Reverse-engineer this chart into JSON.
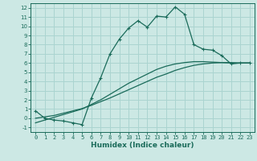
{
  "xlabel": "Humidex (Indice chaleur)",
  "bg_color": "#cce8e4",
  "grid_color": "#aad4d0",
  "line_color": "#1a6b5a",
  "xlim": [
    -0.5,
    23.5
  ],
  "ylim": [
    -1.5,
    12.5
  ],
  "xticks": [
    0,
    1,
    2,
    3,
    4,
    5,
    6,
    7,
    8,
    9,
    10,
    11,
    12,
    13,
    14,
    15,
    16,
    17,
    18,
    19,
    20,
    21,
    22,
    23
  ],
  "yticks": [
    -1,
    0,
    1,
    2,
    3,
    4,
    5,
    6,
    7,
    8,
    9,
    10,
    11,
    12
  ],
  "curve1_x": [
    0,
    1,
    2,
    3,
    4,
    5,
    6,
    7,
    8,
    9,
    10,
    11,
    12,
    13,
    14,
    15,
    16,
    17,
    18,
    19,
    20,
    21,
    22,
    23
  ],
  "curve1_y": [
    0.8,
    0.0,
    -0.2,
    -0.3,
    -0.5,
    -0.7,
    2.2,
    4.4,
    7.0,
    8.6,
    9.8,
    10.6,
    9.9,
    11.1,
    11.0,
    12.1,
    11.3,
    8.0,
    7.5,
    7.4,
    6.8,
    5.9,
    6.0,
    6.0
  ],
  "curve2_x": [
    0,
    1,
    2,
    3,
    4,
    5,
    6,
    7,
    8,
    9,
    10,
    11,
    12,
    13,
    14,
    15,
    16,
    17,
    18,
    19,
    20,
    21,
    22,
    23
  ],
  "curve2_y": [
    0.0,
    0.15,
    0.3,
    0.55,
    0.8,
    1.05,
    1.4,
    1.8,
    2.2,
    2.65,
    3.1,
    3.55,
    4.0,
    4.45,
    4.8,
    5.2,
    5.5,
    5.75,
    5.9,
    6.0,
    6.05,
    6.05,
    6.0,
    6.0
  ],
  "curve3_x": [
    0,
    1,
    2,
    3,
    4,
    5,
    6,
    7,
    8,
    9,
    10,
    11,
    12,
    13,
    14,
    15,
    16,
    17,
    18,
    19,
    20,
    21,
    22,
    23
  ],
  "curve3_y": [
    -0.5,
    -0.2,
    0.1,
    0.4,
    0.7,
    1.0,
    1.5,
    2.0,
    2.6,
    3.2,
    3.8,
    4.3,
    4.8,
    5.3,
    5.65,
    5.9,
    6.05,
    6.15,
    6.15,
    6.1,
    6.05,
    6.0,
    6.0,
    6.0
  ],
  "xlabel_fontsize": 6.5,
  "tick_fontsize": 5.0
}
